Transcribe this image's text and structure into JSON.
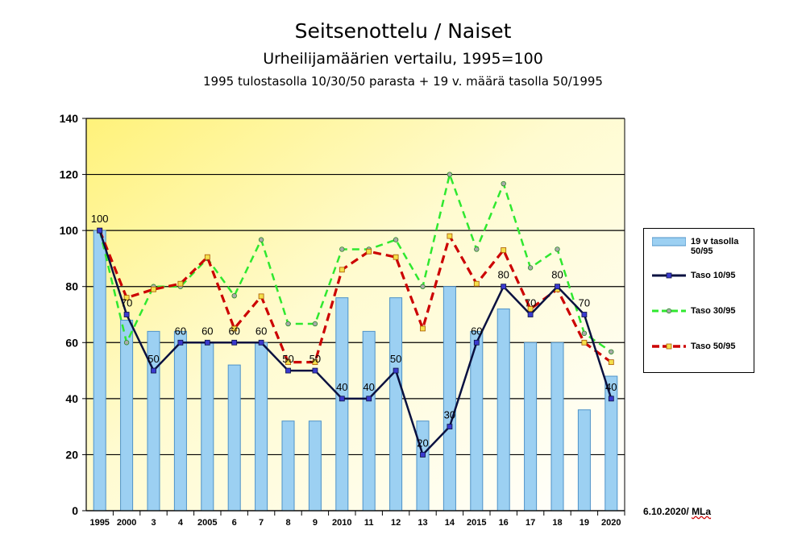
{
  "title": "Seitsenottelu / Naiset",
  "subtitle": "Urheilijamäärien vertailu, 1995=100",
  "subtitle2": "1995 tulostasolla 10/30/50 parasta + 19 v. määrä tasolla 50/1995",
  "credit_date": "6.10.2020/",
  "credit_sig": "MLa",
  "colors": {
    "bar": "#9cd0f2",
    "bar_edge": "#4f93c8",
    "taso10": "#0a1140",
    "taso10_marker": "#3a3acf",
    "taso30": "#2fe82f",
    "taso50": "#cc0000",
    "taso50_marker": "#f4e04a"
  },
  "chart_data": {
    "type": "bar",
    "categories": [
      "1995",
      "2000",
      "3",
      "4",
      "2005",
      "6",
      "7",
      "8",
      "9",
      "2010",
      "11",
      "12",
      "13",
      "14",
      "2015",
      "16",
      "17",
      "18",
      "19",
      "2020"
    ],
    "ylim": [
      0,
      140
    ],
    "yticks": [
      "0",
      "20",
      "40",
      "60",
      "80",
      "100",
      "120",
      "140"
    ],
    "grid": true,
    "legend_position": "right",
    "series": [
      {
        "name": "19 v tasolla 50/95",
        "kind": "bar",
        "values": [
          100,
          68,
          64,
          64,
          60,
          52,
          60,
          32,
          32,
          76,
          64,
          76,
          32,
          80,
          64,
          72,
          60,
          60,
          36,
          48
        ]
      },
      {
        "name": "Taso 10/95",
        "kind": "line",
        "values": [
          100,
          70,
          50,
          60,
          60,
          60,
          60,
          50,
          50,
          40,
          40,
          50,
          20,
          30,
          60,
          80,
          70,
          80,
          70,
          40
        ],
        "labels": [
          "100",
          "70",
          "50",
          "60",
          "60",
          "60",
          "60",
          "50",
          "50",
          "40",
          "40",
          "50",
          "20",
          "30",
          "60",
          "80",
          "70",
          "80",
          "70",
          "40"
        ]
      },
      {
        "name": "Taso 30/95",
        "kind": "line",
        "values": [
          100,
          60,
          80,
          80,
          90,
          76.7,
          96.7,
          66.7,
          66.7,
          93.3,
          93.3,
          96.7,
          80,
          120,
          93.3,
          116.7,
          86.7,
          93.3,
          63.3,
          56.7
        ]
      },
      {
        "name": "Taso 50/95",
        "kind": "line",
        "values": [
          100,
          76,
          79,
          81,
          90.5,
          65,
          76.5,
          53,
          53,
          86,
          92.5,
          90.5,
          65,
          98,
          81,
          93,
          72,
          79,
          60,
          53
        ]
      }
    ]
  }
}
